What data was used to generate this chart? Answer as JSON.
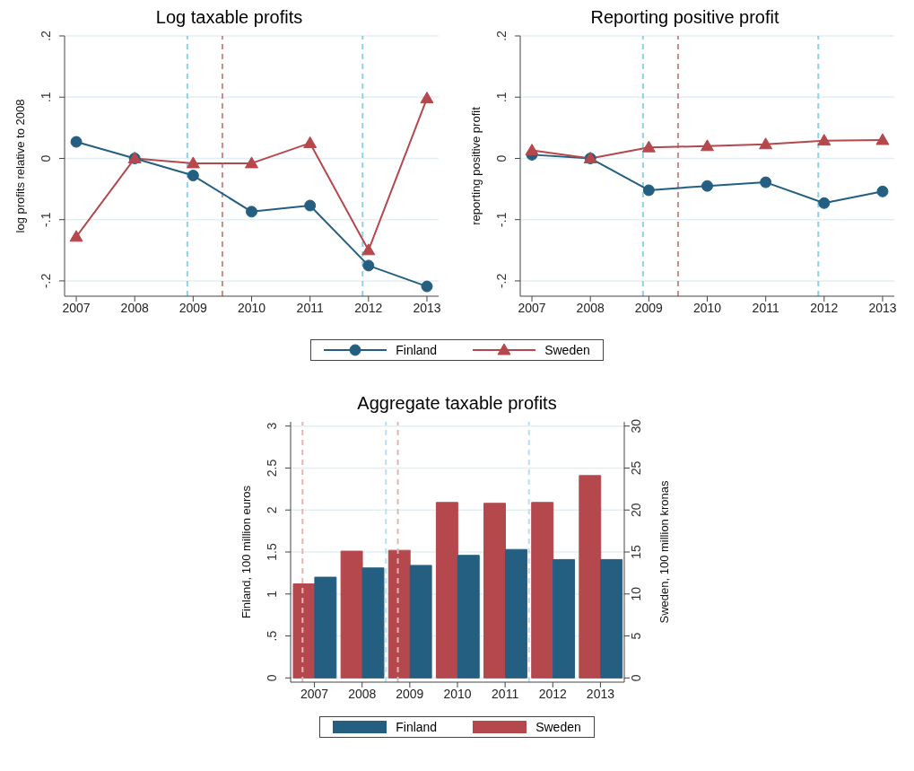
{
  "chart_data": [
    {
      "type": "line",
      "title": "Log taxable profits",
      "ylabel": "log profits relative to 2008",
      "x": [
        2007,
        2008,
        2009,
        2010,
        2011,
        2012,
        2013
      ],
      "series": [
        {
          "name": "Finland",
          "color": "#245f82",
          "marker": "circle",
          "values": [
            0.027,
            0,
            -0.028,
            -0.087,
            -0.077,
            -0.175,
            -0.209
          ]
        },
        {
          "name": "Sweden",
          "color": "#b5484d",
          "marker": "triangle",
          "values": [
            -0.128,
            0,
            -0.008,
            -0.008,
            0.025,
            -0.15,
            0.098
          ]
        }
      ],
      "xlim": [
        2006.8,
        2013.2
      ],
      "xticks": [
        2007,
        2008,
        2009,
        2010,
        2011,
        2012,
        2013
      ],
      "ylim": [
        -0.225,
        0.2
      ],
      "yticks": [
        {
          "value": -0.2,
          "label": "-.2"
        },
        {
          "value": -0.1,
          "label": "-.1"
        },
        0,
        {
          "value": 0.1,
          "label": ".1"
        },
        {
          "value": 0.2,
          "label": ".2"
        }
      ],
      "grid": "y",
      "legend": "bottom",
      "ref_lines": [
        {
          "axis": "x",
          "value": 2008.9,
          "color": "#8fd0e4",
          "line_style": "dashed"
        },
        {
          "axis": "x",
          "value": 2009.5,
          "color": "#c98a8a",
          "line_style": "dashed"
        },
        {
          "axis": "x",
          "value": 2011.9,
          "color": "#8fd0e4",
          "line_style": "dashed"
        }
      ]
    },
    {
      "type": "line",
      "title": "Reporting positive profit",
      "ylabel": "reporting positive profit",
      "x": [
        2007,
        2008,
        2009,
        2010,
        2011,
        2012,
        2013
      ],
      "series": [
        {
          "color": "#245f82",
          "marker": "circle",
          "values": [
            0.006,
            0,
            -0.052,
            -0.045,
            -0.039,
            -0.073,
            -0.054
          ]
        },
        {
          "color": "#b5484d",
          "marker": "triangle",
          "values": [
            0.013,
            0,
            0.018,
            0.02,
            0.023,
            0.029,
            0.03
          ]
        }
      ],
      "xlim": [
        2006.8,
        2013.2
      ],
      "xticks": [
        2007,
        2008,
        2009,
        2010,
        2011,
        2012,
        2013
      ],
      "ylim": [
        -0.225,
        0.2
      ],
      "yticks": [
        {
          "value": -0.2,
          "label": "-.2"
        },
        {
          "value": -0.1,
          "label": "-.1"
        },
        0,
        {
          "value": 0.1,
          "label": ".1"
        },
        {
          "value": 0.2,
          "label": ".2"
        }
      ],
      "grid": "y",
      "ref_lines": [
        {
          "axis": "x",
          "value": 2008.9,
          "color": "#8fd0e4",
          "line_style": "dashed"
        },
        {
          "axis": "x",
          "value": 2009.5,
          "color": "#c98a8a",
          "line_style": "dashed"
        },
        {
          "axis": "x",
          "value": 2011.9,
          "color": "#8fd0e4",
          "line_style": "dashed"
        }
      ]
    },
    {
      "type": "bar",
      "title": "Aggregate taxable profits",
      "ylabel": "Finland, 100 million euros",
      "y2label": "Sweden, 100 million kronas",
      "x": [
        2007,
        2008,
        2009,
        2010,
        2011,
        2012,
        2013
      ],
      "series": [
        {
          "name": "Finland",
          "color": "#245f82",
          "values": [
            1.2,
            1.31,
            1.34,
            1.46,
            1.53,
            1.41,
            1.41
          ]
        },
        {
          "name": "Sweden",
          "color": "#b5484d",
          "axis": "y2",
          "values": [
            11.2,
            15.1,
            15.2,
            20.9,
            20.8,
            20.9,
            24.1
          ]
        }
      ],
      "xlim": [
        2006.5,
        2013.5
      ],
      "xticks": [
        2007,
        2008,
        2009,
        2010,
        2011,
        2012,
        2013
      ],
      "ylim": [
        -0.05,
        3.05
      ],
      "yticks": [
        0,
        {
          "value": 0.5,
          "label": ".5"
        },
        1,
        1.5,
        2,
        2.5,
        3
      ],
      "y2lim": [
        -0.5,
        30.5
      ],
      "y2ticks": [
        0,
        5,
        10,
        15,
        20,
        25,
        30
      ],
      "grid": "y",
      "legend": "bottom",
      "ref_lines": [
        {
          "axis": "x",
          "value": 2006.75,
          "color": "#e2b4b4",
          "line_style": "dashed"
        },
        {
          "axis": "x",
          "value": 2008.5,
          "color": "#b8e0ec",
          "line_style": "dashed"
        },
        {
          "axis": "x",
          "value": 2008.75,
          "color": "#e2b4b4",
          "line_style": "dashed"
        },
        {
          "axis": "x",
          "value": 2011.5,
          "color": "#b8e0ec",
          "line_style": "dashed"
        }
      ]
    }
  ]
}
